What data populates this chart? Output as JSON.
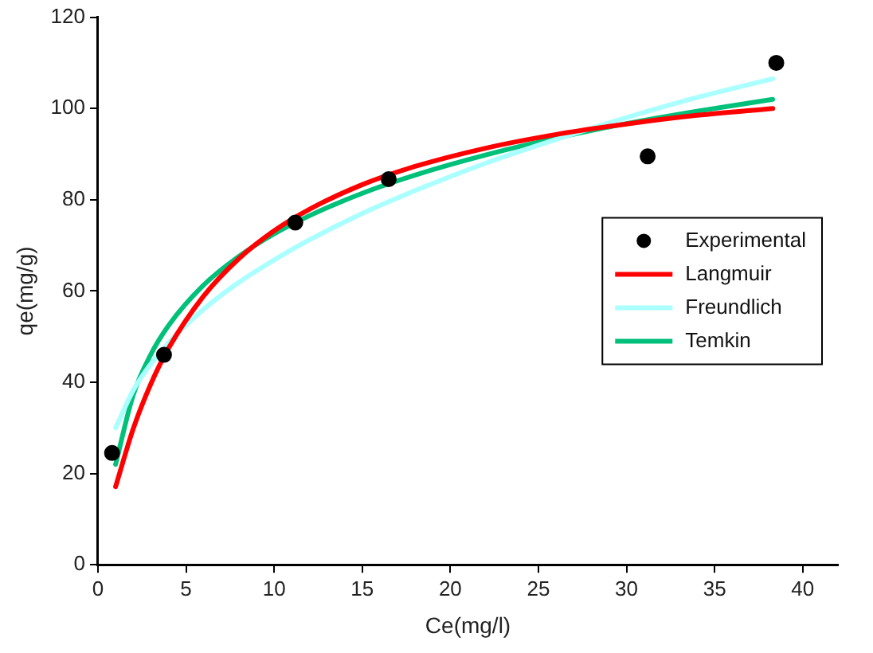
{
  "chart_data": {
    "type": "line",
    "xlabel": "Ce(mg/l)",
    "ylabel": "qe(mg/g)",
    "xlim": [
      0,
      42
    ],
    "xticks": [
      0,
      5,
      10,
      15,
      20,
      25,
      30,
      35,
      40
    ],
    "ylim": [
      0,
      120
    ],
    "yticks": [
      0,
      20,
      40,
      60,
      80,
      100,
      120
    ],
    "grid": false,
    "legend": "center right",
    "line_style": "solid",
    "marker": "none",
    "series": [
      {
        "name": "Experimental",
        "type": "scatter",
        "marker": "circle",
        "color": "#000000",
        "x": [
          0.8,
          3.75,
          11.2,
          16.5,
          31.2,
          38.5
        ],
        "values": [
          24.5,
          46,
          75,
          84.5,
          89.5,
          110
        ]
      },
      {
        "name": "Langmuir",
        "color": "#ff0000",
        "x": [
          1,
          2,
          3,
          4,
          6,
          8,
          10,
          12,
          15,
          18,
          22,
          26,
          30,
          34,
          38.3
        ],
        "values": [
          17.1,
          29.8,
          39.6,
          47.4,
          58.9,
          67.1,
          73.2,
          77.9,
          83.3,
          87.3,
          91.3,
          94.3,
          96.6,
          98.5,
          100
        ]
      },
      {
        "name": "Freundlich",
        "color": "#aaffff",
        "x": [
          1,
          2,
          3,
          4,
          6,
          8,
          10,
          12,
          15,
          18,
          22,
          26,
          30,
          34,
          38.3
        ],
        "values": [
          30,
          38.2,
          44,
          48.6,
          56,
          61.9,
          66.8,
          71.2,
          77,
          82,
          88,
          93.2,
          98,
          102.4,
          106.5
        ]
      },
      {
        "name": "Temkin",
        "color": "#00c07a",
        "x": [
          1,
          2,
          3,
          4,
          6,
          8,
          10,
          12,
          15,
          18,
          22,
          26,
          30,
          34,
          38.3
        ],
        "values": [
          22,
          37.2,
          46.1,
          52.4,
          61.3,
          67.6,
          72.5,
          76.5,
          81.4,
          85.4,
          89.8,
          93.5,
          96.7,
          99.4,
          102
        ]
      }
    ]
  }
}
